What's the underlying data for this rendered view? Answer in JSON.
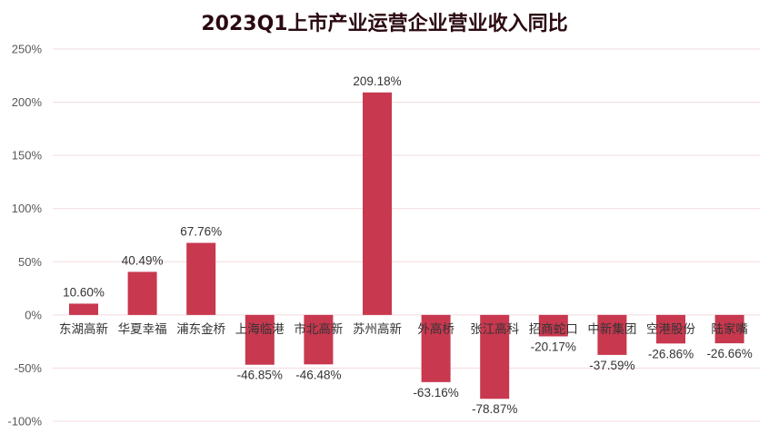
{
  "chart_data": {
    "type": "bar",
    "title": "2023Q1上市产业运营企业营业收入同比",
    "xlabel": "",
    "ylabel": "",
    "categories": [
      "东湖高新",
      "华夏幸福",
      "浦东金桥",
      "上海临港",
      "市北高新",
      "苏州高新",
      "外高桥",
      "张江高科",
      "招商蛇口",
      "中新集团",
      "空港股份",
      "陆家嘴"
    ],
    "values": [
      10.6,
      40.49,
      67.76,
      -46.85,
      -46.48,
      209.18,
      -63.16,
      -78.87,
      -20.17,
      -37.59,
      -26.86,
      -26.66
    ],
    "data_labels": [
      "10.60%",
      "40.49%",
      "67.76%",
      "-46.85%",
      "-46.48%",
      "209.18%",
      "-63.16%",
      "-78.87%",
      "-20.17%",
      "-37.59%",
      "-26.86%",
      "-26.66%"
    ],
    "ylim": [
      -100,
      250
    ],
    "yticks": [
      250,
      200,
      150,
      100,
      50,
      0,
      -50,
      -100
    ],
    "ytick_labels": [
      "250%",
      "200%",
      "150%",
      "100%",
      "50%",
      "0%",
      "-50%",
      "-100%"
    ],
    "grid": true,
    "legend": "none",
    "bar_color": "#c8384f",
    "grid_color": "#f2d9dc"
  }
}
